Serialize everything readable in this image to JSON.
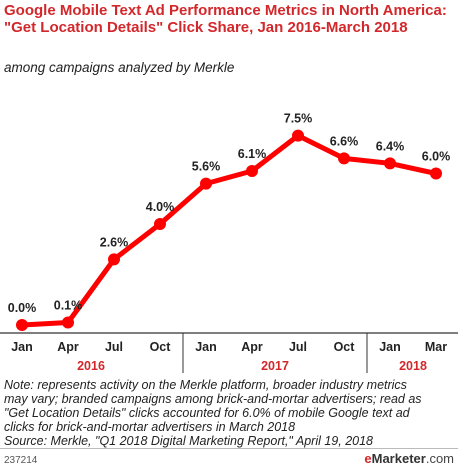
{
  "header": {
    "title": "Google Mobile Text Ad Performance Metrics in North America: \"Get Location Details\" Click Share, Jan 2016-March 2018",
    "subtitle": "among campaigns analyzed by Merkle"
  },
  "chart_data": {
    "type": "line",
    "categories": [
      "Jan",
      "Apr",
      "Jul",
      "Oct",
      "Jan",
      "Apr",
      "Jul",
      "Oct",
      "Jan",
      "Mar"
    ],
    "year_groups": [
      {
        "label": "2016",
        "from": 0,
        "to": 3
      },
      {
        "label": "2017",
        "from": 4,
        "to": 7
      },
      {
        "label": "2018",
        "from": 8,
        "to": 9
      }
    ],
    "series": [
      {
        "values": [
          0.0,
          0.1,
          2.6,
          4.0,
          5.6,
          6.1,
          7.5,
          6.6,
          6.4,
          6.0
        ]
      }
    ],
    "data_labels": [
      "0.0%",
      "0.1%",
      "2.6%",
      "4.0%",
      "5.6%",
      "6.1%",
      "7.5%",
      "6.6%",
      "6.4%",
      "6.0%"
    ],
    "ylim": [
      0,
      8
    ],
    "grid": false,
    "colors": {
      "line": "#ff0000",
      "year_label": "#d3282b",
      "axis": "#333333"
    }
  },
  "footer": {
    "note_lines": [
      "Note: represents activity on the Merkle platform, broader industry metrics",
      "may vary; branded campaigns among brick-and-mortar advertisers; read as",
      "\"Get Location Details\" clicks accounted for 6.0% of mobile Google text ad",
      "clicks for brick-and-mortar advertisers in March 2018",
      "Source: Merkle, \"Q1 2018 Digital Marketing Report,\" April 19, 2018"
    ],
    "chart_id": "237214",
    "brand_e": "e",
    "brand_rest": "Marketer",
    "brand_domain": ".com"
  }
}
